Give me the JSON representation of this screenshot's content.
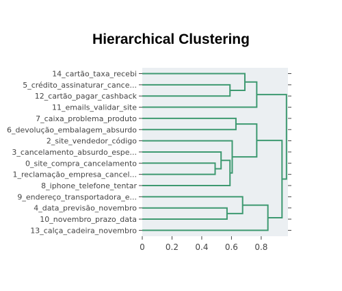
{
  "chart_data": {
    "type": "dendrogram",
    "title": "Hierarchical Clustering",
    "orientation": "horizontal",
    "xlim": [
      0,
      0.98
    ],
    "x_ticks": [
      0,
      0.2,
      0.4,
      0.6,
      0.8
    ],
    "x_tick_labels": [
      "0",
      "0.2",
      "0.4",
      "0.6",
      "0.8"
    ],
    "grid": false,
    "line_color": "#3d9970",
    "plot_bg": "#ebeff2",
    "leaves": [
      "14_cartão_taxa_recebi",
      "5_crédito_assinaturar_cance...",
      "12_cartão_pagar_cashback",
      "11_emails_validar_site",
      "7_caixa_problema_produto",
      "6_devolução_embalagem_absurdo",
      "2_site_vendedor_código",
      "3_cancelamento_absurdo_espe...",
      "0_site_compra_cancelamento",
      "1_reclamação_empresa_cancel...",
      "8_iphone_telefone_tentar",
      "9_endereço_transportadora_e...",
      "4_data_previsão_novembro",
      "10_novembro_prazo_data",
      "13_calça_cadeira_novembro"
    ],
    "merges": [
      {
        "id": "A",
        "a": 8,
        "b": 9,
        "height": 0.49
      },
      {
        "id": "B",
        "a": 7,
        "b": "A",
        "height": 0.53
      },
      {
        "id": "C",
        "a": "B",
        "b": 10,
        "height": 0.59
      },
      {
        "id": "D",
        "a": 6,
        "b": "C",
        "height": 0.605
      },
      {
        "id": "E",
        "a": 4,
        "b": 5,
        "height": 0.63
      },
      {
        "id": "F",
        "a": 1,
        "b": 2,
        "height": 0.59
      },
      {
        "id": "G",
        "a": 0,
        "b": "F",
        "height": 0.69
      },
      {
        "id": "H",
        "a": 12,
        "b": 13,
        "height": 0.57
      },
      {
        "id": "I",
        "a": 11,
        "b": "H",
        "height": 0.675
      },
      {
        "id": "J",
        "a": "E",
        "b": "D",
        "height": 0.77
      },
      {
        "id": "K",
        "a": "G",
        "b": 3,
        "height": 0.77
      },
      {
        "id": "L",
        "a": "I",
        "b": 14,
        "height": 0.845
      },
      {
        "id": "M",
        "a": "J",
        "b": "L",
        "height": 0.94
      },
      {
        "id": "N",
        "a": "K",
        "b": "M",
        "height": 0.97
      }
    ]
  }
}
